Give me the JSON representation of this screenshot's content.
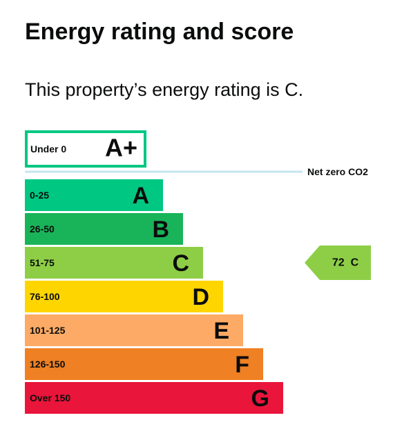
{
  "page": {
    "title": "Energy rating and score",
    "summary": "This property’s energy rating is C."
  },
  "chart_data": {
    "type": "bar",
    "orientation": "horizontal",
    "categories": [
      "A+",
      "A",
      "B",
      "C",
      "D",
      "E",
      "F",
      "G"
    ],
    "ranges": [
      "Under 0",
      "0-25",
      "26-50",
      "51-75",
      "76-100",
      "101-125",
      "126-150",
      "Over 150"
    ],
    "colors": {
      "A+": "#ffffff",
      "A": "#00c781",
      "B": "#19b459",
      "C": "#8dce46",
      "D": "#ffd500",
      "E": "#fcaa65",
      "F": "#ef8023",
      "G": "#e9153b"
    },
    "aplus_border_color": "#00c781",
    "net_zero": {
      "label": "Net zero CO2",
      "line_color": "#c5e4f0"
    },
    "current": {
      "score": 72,
      "rating": "C",
      "label": "72  C",
      "color": "#8dce46"
    }
  }
}
